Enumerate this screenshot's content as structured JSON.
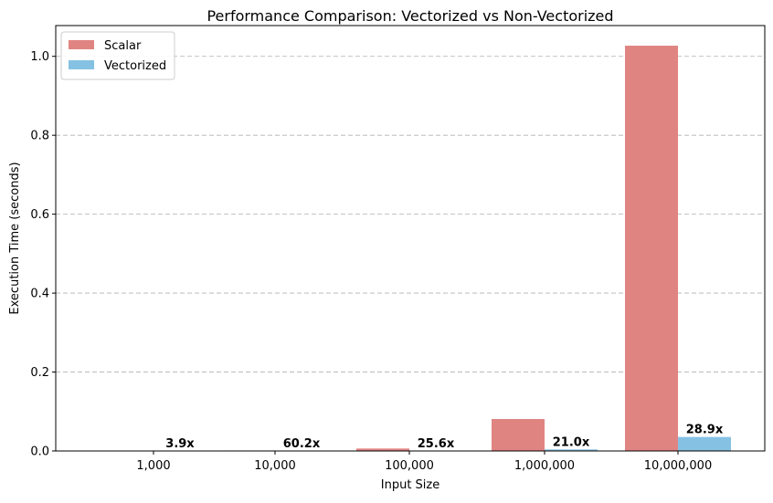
{
  "chart_data": {
    "type": "bar",
    "title": "Performance Comparison: Vectorized vs Non-Vectorized",
    "xlabel": "Input Size",
    "ylabel": "Execution Time (seconds)",
    "categories": [
      "1,000",
      "10,000",
      "100,000",
      "1,000,000",
      "10,000,000"
    ],
    "series": [
      {
        "name": "Scalar",
        "color": "#e08482",
        "values": [
          0.0001,
          0.0012,
          0.0062,
          0.081,
          1.027
        ]
      },
      {
        "name": "Vectorized",
        "color": "#85c1e2",
        "values": [
          3e-05,
          2e-05,
          0.00024,
          0.0039,
          0.0355
        ]
      }
    ],
    "speedup_labels": [
      "3.9x",
      "60.2x",
      "25.6x",
      "21.0x",
      "28.9x"
    ],
    "ylim": [
      0,
      1.078
    ],
    "yticks": [
      0.0,
      0.2,
      0.4,
      0.6,
      0.8,
      1.0
    ],
    "ytick_labels": [
      "0.0",
      "0.2",
      "0.4",
      "0.6",
      "0.8",
      "1.0"
    ],
    "grid": {
      "y": true,
      "style": "dashed"
    },
    "legend": {
      "placement": "top-left"
    }
  }
}
